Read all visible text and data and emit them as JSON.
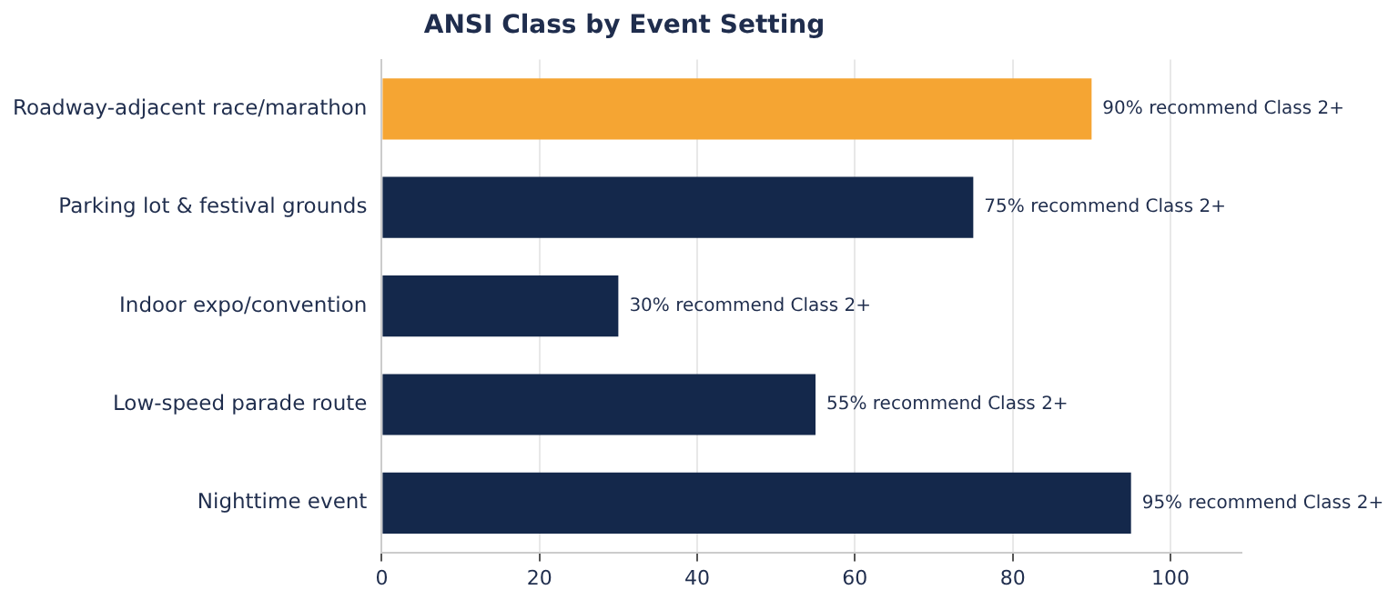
{
  "chart_data": {
    "type": "bar",
    "orientation": "horizontal",
    "title": "ANSI Class by Event Setting",
    "categories": [
      "Roadway-adjacent race/marathon",
      "Parking lot & festival grounds",
      "Indoor expo/convention",
      "Low-speed parade route",
      "Nighttime event"
    ],
    "values": [
      90,
      75,
      30,
      55,
      95
    ],
    "colors": [
      "#f5a533",
      "#14284b",
      "#14284b",
      "#14284b",
      "#14284b"
    ],
    "value_labels": [
      "90% recommend Class 2+",
      "75% recommend Class 2+",
      "30% recommend Class 2+",
      "55% recommend Class 2+",
      "95% recommend Class 2+"
    ],
    "xlim": [
      0,
      109
    ],
    "xticks": [
      0,
      20,
      40,
      60,
      80,
      100
    ],
    "grid": "x",
    "legend": false
  }
}
